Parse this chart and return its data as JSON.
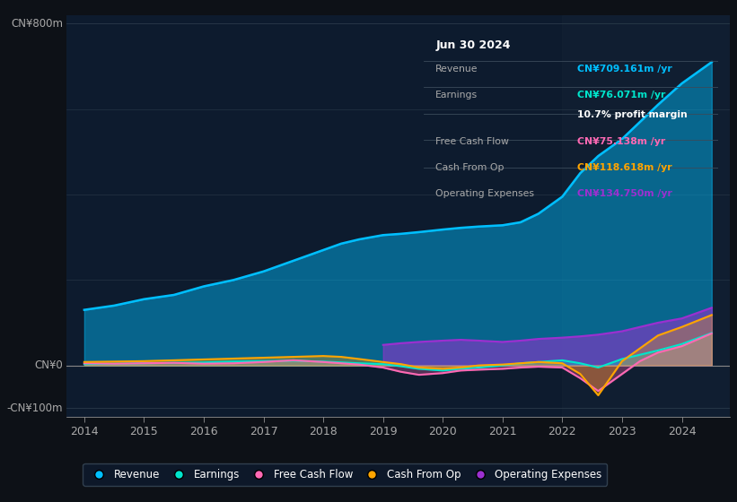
{
  "bg_color": "#0d1117",
  "plot_bg_color": "#0d1b2e",
  "title": "Jun 30 2024",
  "xmin": 2013.7,
  "xmax": 2024.8,
  "ymin": -120,
  "ymax": 820,
  "years": [
    2014.0,
    2014.5,
    2015.0,
    2015.5,
    2016.0,
    2016.5,
    2017.0,
    2017.5,
    2018.0,
    2018.3,
    2018.6,
    2019.0,
    2019.3,
    2019.6,
    2020.0,
    2020.3,
    2020.6,
    2021.0,
    2021.3,
    2021.6,
    2022.0,
    2022.3,
    2022.6,
    2023.0,
    2023.3,
    2023.6,
    2024.0,
    2024.5
  ],
  "revenue": [
    130,
    140,
    155,
    165,
    185,
    200,
    220,
    245,
    270,
    285,
    295,
    305,
    308,
    312,
    318,
    322,
    325,
    328,
    335,
    355,
    395,
    450,
    490,
    530,
    570,
    610,
    660,
    710
  ],
  "earnings": [
    3,
    4,
    5,
    6,
    7,
    9,
    10,
    11,
    9,
    7,
    5,
    3,
    -2,
    -8,
    -12,
    -8,
    -5,
    0,
    5,
    8,
    12,
    5,
    -5,
    15,
    25,
    35,
    50,
    76
  ],
  "free_cash_flow": [
    5,
    4,
    5,
    6,
    4,
    5,
    8,
    12,
    8,
    5,
    2,
    -5,
    -15,
    -22,
    -18,
    -12,
    -10,
    -8,
    -5,
    -3,
    -5,
    -30,
    -60,
    -20,
    10,
    30,
    45,
    75
  ],
  "cash_from_op": [
    8,
    9,
    10,
    12,
    14,
    16,
    18,
    20,
    22,
    20,
    15,
    8,
    3,
    -5,
    -8,
    -5,
    0,
    2,
    5,
    8,
    5,
    -20,
    -70,
    10,
    40,
    70,
    90,
    118
  ],
  "operating_expenses": [
    0,
    0,
    0,
    0,
    0,
    0,
    0,
    0,
    0,
    0,
    0,
    48,
    52,
    55,
    58,
    60,
    58,
    55,
    58,
    62,
    65,
    68,
    72,
    80,
    90,
    100,
    110,
    135
  ],
  "revenue_color": "#00bfff",
  "earnings_color": "#00e5cc",
  "fcf_color": "#ff69b4",
  "cfop_color": "#ffa500",
  "opex_color": "#9b30d0",
  "grid_color": "#2a3a4a",
  "zero_line_color": "#888888",
  "tick_color": "#aaaaaa",
  "info_title": "Jun 30 2024",
  "info_revenue_label": "Revenue",
  "info_revenue_value": "CN¥709.161m /yr",
  "info_earnings_label": "Earnings",
  "info_earnings_value": "CN¥76.071m /yr",
  "info_margin": "10.7% profit margin",
  "info_fcf_label": "Free Cash Flow",
  "info_fcf_value": "CN¥75.138m /yr",
  "info_cfop_label": "Cash From Op",
  "info_cfop_value": "CN¥118.618m /yr",
  "info_opex_label": "Operating Expenses",
  "info_opex_value": "CN¥134.750m /yr",
  "ylabel_800": "CN¥800m",
  "ylabel_0": "CN¥0",
  "ylabel_n100": "-CN¥100m",
  "xticks": [
    2014,
    2015,
    2016,
    2017,
    2018,
    2019,
    2020,
    2021,
    2022,
    2023,
    2024
  ],
  "xtick_labels": [
    "2014",
    "2015",
    "2016",
    "2017",
    "2018",
    "2019",
    "2020",
    "2021",
    "2022",
    "2023",
    "2024"
  ],
  "legend_items": [
    {
      "label": "Revenue",
      "color": "#00bfff"
    },
    {
      "label": "Earnings",
      "color": "#00e5cc"
    },
    {
      "label": "Free Cash Flow",
      "color": "#ff69b4"
    },
    {
      "label": "Cash From Op",
      "color": "#ffa500"
    },
    {
      "label": "Operating Expenses",
      "color": "#9b30d0"
    }
  ]
}
